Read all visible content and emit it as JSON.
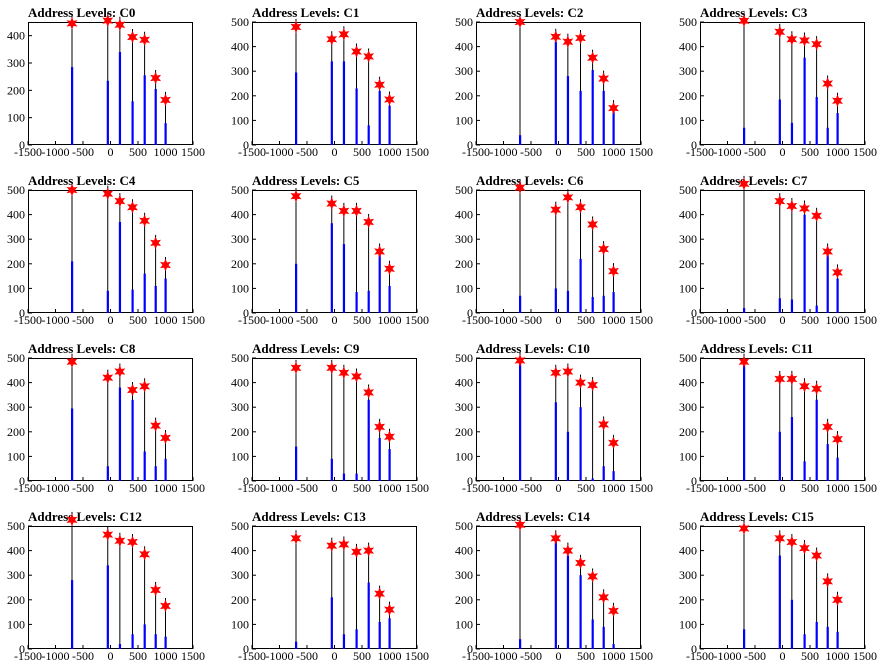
{
  "chart_data": [
    {
      "title": "Address Levels: C0",
      "type": "bar",
      "xlim": [
        -1500,
        1500
      ],
      "ylim": [
        0,
        450
      ],
      "x_ticks": [
        -1500,
        -1000,
        -500,
        0,
        500,
        1000,
        1500
      ],
      "x_tick_labels": [
        "-1500",
        "-1000",
        "-500",
        "0",
        "500",
        "1000",
        "1500"
      ],
      "y_ticks": [
        0,
        100,
        200,
        300,
        400
      ],
      "y_tick_labels": [
        "0",
        "100",
        "200",
        "300",
        "400"
      ],
      "peaks": {
        "x": [
          -700,
          -50,
          170,
          400,
          620,
          820,
          1000
        ],
        "y": [
          445,
          455,
          440,
          395,
          385,
          245,
          165
        ]
      },
      "blue_bars": {
        "x": [
          -700,
          -50,
          170,
          400,
          620,
          820,
          1000
        ],
        "y": [
          285,
          235,
          340,
          160,
          255,
          205,
          80
        ]
      }
    },
    {
      "title": "Address Levels: C1",
      "type": "bar",
      "xlim": [
        -1500,
        1500
      ],
      "ylim": [
        0,
        500
      ],
      "x_ticks": [
        -1500,
        -1000,
        -500,
        0,
        500,
        1000,
        1500
      ],
      "x_tick_labels": [
        "-1500",
        "-1000",
        "-500",
        "0",
        "500",
        "1000",
        "1500"
      ],
      "y_ticks": [
        0,
        100,
        200,
        300,
        400,
        500
      ],
      "y_tick_labels": [
        "0",
        "100",
        "200",
        "300",
        "400",
        "500"
      ],
      "peaks": {
        "x": [
          -700,
          -50,
          170,
          400,
          620,
          820,
          1000
        ],
        "y": [
          480,
          430,
          450,
          380,
          360,
          245,
          185
        ]
      },
      "blue_bars": {
        "x": [
          -700,
          -50,
          170,
          400,
          620,
          820,
          1000
        ],
        "y": [
          295,
          340,
          340,
          230,
          80,
          220,
          160
        ]
      }
    },
    {
      "title": "Address Levels: C2",
      "type": "bar",
      "xlim": [
        -1500,
        1500
      ],
      "ylim": [
        0,
        500
      ],
      "x_ticks": [
        -1500,
        -1000,
        -500,
        0,
        500,
        1000,
        1500
      ],
      "x_tick_labels": [
        "-1500",
        "-1000",
        "-500",
        "0",
        "500",
        "1000",
        "1500"
      ],
      "y_ticks": [
        0,
        100,
        200,
        300,
        400,
        500
      ],
      "y_tick_labels": [
        "0",
        "100",
        "200",
        "300",
        "400",
        "500"
      ],
      "peaks": {
        "x": [
          -700,
          -50,
          170,
          400,
          620,
          820,
          1000
        ],
        "y": [
          500,
          440,
          420,
          435,
          355,
          270,
          150
        ]
      },
      "blue_bars": {
        "x": [
          -700,
          -50,
          170,
          400,
          620,
          820,
          1000
        ],
        "y": [
          40,
          420,
          280,
          220,
          305,
          220,
          135
        ]
      }
    },
    {
      "title": "Address Levels: C3",
      "type": "bar",
      "xlim": [
        -1500,
        1500
      ],
      "ylim": [
        0,
        500
      ],
      "x_ticks": [
        -1500,
        -1000,
        -500,
        0,
        500,
        1000,
        1500
      ],
      "x_tick_labels": [
        "-1500",
        "-1000",
        "-500",
        "0",
        "500",
        "1000",
        "1500"
      ],
      "y_ticks": [
        0,
        100,
        200,
        300,
        400,
        500
      ],
      "y_tick_labels": [
        "0",
        "100",
        "200",
        "300",
        "400",
        "500"
      ],
      "peaks": {
        "x": [
          -700,
          -50,
          170,
          400,
          620,
          820,
          1000
        ],
        "y": [
          505,
          460,
          430,
          425,
          410,
          250,
          180
        ]
      },
      "blue_bars": {
        "x": [
          -700,
          -50,
          170,
          400,
          620,
          820,
          1000
        ],
        "y": [
          70,
          185,
          90,
          355,
          195,
          70,
          130
        ]
      }
    },
    {
      "title": "Address Levels: C4",
      "type": "bar",
      "xlim": [
        -1500,
        1500
      ],
      "ylim": [
        0,
        500
      ],
      "x_ticks": [
        -1500,
        -1000,
        -500,
        0,
        500,
        1000,
        1500
      ],
      "x_tick_labels": [
        "-1500",
        "-1000",
        "-500",
        "0",
        "500",
        "1000",
        "1500"
      ],
      "y_ticks": [
        0,
        100,
        200,
        300,
        400,
        500
      ],
      "y_tick_labels": [
        "0",
        "100",
        "200",
        "300",
        "400",
        "500"
      ],
      "peaks": {
        "x": [
          -700,
          -50,
          170,
          400,
          620,
          820,
          1000
        ],
        "y": [
          500,
          485,
          455,
          430,
          375,
          285,
          195
        ]
      },
      "blue_bars": {
        "x": [
          -700,
          -50,
          170,
          400,
          620,
          820,
          1000
        ],
        "y": [
          210,
          90,
          370,
          95,
          160,
          110,
          140
        ]
      }
    },
    {
      "title": "Address Levels: C5",
      "type": "bar",
      "xlim": [
        -1500,
        1500
      ],
      "ylim": [
        0,
        500
      ],
      "x_ticks": [
        -1500,
        -1000,
        -500,
        0,
        500,
        1000,
        1500
      ],
      "x_tick_labels": [
        "-1500",
        "-1000",
        "-500",
        "0",
        "500",
        "1000",
        "1500"
      ],
      "y_ticks": [
        0,
        100,
        200,
        300,
        400,
        500
      ],
      "y_tick_labels": [
        "0",
        "100",
        "200",
        "300",
        "400",
        "500"
      ],
      "peaks": {
        "x": [
          -700,
          -50,
          170,
          400,
          620,
          820,
          1000
        ],
        "y": [
          475,
          445,
          415,
          415,
          370,
          250,
          180
        ]
      },
      "blue_bars": {
        "x": [
          -700,
          -50,
          170,
          400,
          620,
          820,
          1000
        ],
        "y": [
          200,
          365,
          280,
          85,
          90,
          245,
          110
        ]
      }
    },
    {
      "title": "Address Levels: C6",
      "type": "bar",
      "xlim": [
        -1500,
        1500
      ],
      "ylim": [
        0,
        500
      ],
      "x_ticks": [
        -1500,
        -1000,
        -500,
        0,
        500,
        1000,
        1500
      ],
      "x_tick_labels": [
        "-1500",
        "-1000",
        "-500",
        "0",
        "500",
        "1000",
        "1500"
      ],
      "y_ticks": [
        0,
        100,
        200,
        300,
        400,
        500
      ],
      "y_tick_labels": [
        "0",
        "100",
        "200",
        "300",
        "400",
        "500"
      ],
      "peaks": {
        "x": [
          -700,
          -50,
          170,
          400,
          620,
          820,
          1000
        ],
        "y": [
          510,
          420,
          470,
          430,
          360,
          260,
          170
        ]
      },
      "blue_bars": {
        "x": [
          -700,
          -50,
          170,
          400,
          620,
          820,
          1000
        ],
        "y": [
          70,
          100,
          90,
          220,
          65,
          70,
          85
        ]
      }
    },
    {
      "title": "Address Levels: C7",
      "type": "bar",
      "xlim": [
        -1500,
        1500
      ],
      "ylim": [
        0,
        500
      ],
      "x_ticks": [
        -1500,
        -1000,
        -500,
        0,
        500,
        1000,
        1500
      ],
      "x_tick_labels": [
        "-1500",
        "-1000",
        "-500",
        "0",
        "500",
        "1000",
        "1500"
      ],
      "y_ticks": [
        0,
        100,
        200,
        300,
        400,
        500
      ],
      "y_tick_labels": [
        "0",
        "100",
        "200",
        "300",
        "400",
        "500"
      ],
      "peaks": {
        "x": [
          -700,
          -50,
          170,
          400,
          620,
          820,
          1000
        ],
        "y": [
          525,
          455,
          435,
          425,
          395,
          250,
          165
        ]
      },
      "blue_bars": {
        "x": [
          -700,
          -50,
          170,
          400,
          620,
          820,
          1000
        ],
        "y": [
          20,
          60,
          55,
          400,
          30,
          235,
          140
        ]
      }
    },
    {
      "title": "Address Levels: C8",
      "type": "bar",
      "xlim": [
        -1500,
        1500
      ],
      "ylim": [
        0,
        500
      ],
      "x_ticks": [
        -1500,
        -1000,
        -500,
        0,
        500,
        1000,
        1500
      ],
      "x_tick_labels": [
        "-1500",
        "-1000",
        "-500",
        "0",
        "500",
        "1000",
        "1500"
      ],
      "y_ticks": [
        0,
        100,
        200,
        300,
        400,
        500
      ],
      "y_tick_labels": [
        "0",
        "100",
        "200",
        "300",
        "400",
        "500"
      ],
      "peaks": {
        "x": [
          -700,
          -50,
          170,
          400,
          620,
          820,
          1000
        ],
        "y": [
          485,
          420,
          445,
          370,
          385,
          225,
          175
        ]
      },
      "blue_bars": {
        "x": [
          -700,
          -50,
          170,
          400,
          620,
          820,
          1000
        ],
        "y": [
          295,
          60,
          380,
          330,
          120,
          60,
          90
        ]
      }
    },
    {
      "title": "Address Levels: C9",
      "type": "bar",
      "xlim": [
        -1500,
        1500
      ],
      "ylim": [
        0,
        500
      ],
      "x_ticks": [
        -1500,
        -1000,
        -500,
        0,
        500,
        1000,
        1500
      ],
      "x_tick_labels": [
        "-1500",
        "-1000",
        "-500",
        "0",
        "500",
        "1000",
        "1500"
      ],
      "y_ticks": [
        0,
        100,
        200,
        300,
        400,
        500
      ],
      "y_tick_labels": [
        "0",
        "100",
        "200",
        "300",
        "400",
        "500"
      ],
      "peaks": {
        "x": [
          -700,
          -50,
          170,
          400,
          620,
          820,
          1000
        ],
        "y": [
          460,
          460,
          440,
          425,
          360,
          220,
          180
        ]
      },
      "blue_bars": {
        "x": [
          -700,
          -50,
          170,
          400,
          620,
          820,
          1000
        ],
        "y": [
          140,
          90,
          30,
          30,
          330,
          175,
          130
        ]
      }
    },
    {
      "title": "Address Levels: C10",
      "type": "bar",
      "xlim": [
        -1500,
        1500
      ],
      "ylim": [
        0,
        500
      ],
      "x_ticks": [
        -1500,
        -1000,
        -500,
        0,
        500,
        1000,
        1500
      ],
      "x_tick_labels": [
        "-1500",
        "-1000",
        "-500",
        "0",
        "500",
        "1000",
        "1500"
      ],
      "y_ticks": [
        0,
        100,
        200,
        300,
        400,
        500
      ],
      "y_tick_labels": [
        "0",
        "100",
        "200",
        "300",
        "400",
        "500"
      ],
      "peaks": {
        "x": [
          -700,
          -50,
          170,
          400,
          620,
          820,
          1000
        ],
        "y": [
          490,
          440,
          445,
          400,
          390,
          230,
          155
        ]
      },
      "blue_bars": {
        "x": [
          -700,
          -50,
          170,
          400,
          620,
          820,
          1000
        ],
        "y": [
          480,
          320,
          200,
          300,
          10,
          60,
          40
        ]
      }
    },
    {
      "title": "Address Levels: C11",
      "type": "bar",
      "xlim": [
        -1500,
        1500
      ],
      "ylim": [
        0,
        500
      ],
      "x_ticks": [
        -1500,
        -1000,
        -500,
        0,
        500,
        1000,
        1500
      ],
      "x_tick_labels": [
        "-1500",
        "-1000",
        "-500",
        "0",
        "500",
        "1000",
        "1500"
      ],
      "y_ticks": [
        0,
        100,
        200,
        300,
        400,
        500
      ],
      "y_tick_labels": [
        "0",
        "100",
        "200",
        "300",
        "400",
        "500"
      ],
      "peaks": {
        "x": [
          -700,
          -50,
          170,
          400,
          620,
          820,
          1000
        ],
        "y": [
          485,
          415,
          415,
          385,
          375,
          220,
          170
        ]
      },
      "blue_bars": {
        "x": [
          -700,
          -50,
          170,
          400,
          620,
          820,
          1000
        ],
        "y": [
          470,
          200,
          260,
          80,
          330,
          150,
          95
        ]
      }
    },
    {
      "title": "Address Levels: C12",
      "type": "bar",
      "xlim": [
        -1500,
        1500
      ],
      "ylim": [
        0,
        500
      ],
      "x_ticks": [
        -1500,
        -1000,
        -500,
        0,
        500,
        1000,
        1500
      ],
      "x_tick_labels": [
        "-1500",
        "-1000",
        "-500",
        "0",
        "500",
        "1000",
        "1500"
      ],
      "y_ticks": [
        0,
        100,
        200,
        300,
        400,
        500
      ],
      "y_tick_labels": [
        "0",
        "100",
        "200",
        "300",
        "400",
        "500"
      ],
      "peaks": {
        "x": [
          -700,
          -50,
          170,
          400,
          620,
          820,
          1000
        ],
        "y": [
          525,
          465,
          440,
          435,
          385,
          240,
          175
        ]
      },
      "blue_bars": {
        "x": [
          -700,
          -50,
          170,
          400,
          620,
          820,
          1000
        ],
        "y": [
          280,
          340,
          20,
          60,
          100,
          60,
          50
        ]
      }
    },
    {
      "title": "Address Levels: C13",
      "type": "bar",
      "xlim": [
        -1500,
        1500
      ],
      "ylim": [
        0,
        500
      ],
      "x_ticks": [
        -1500,
        -1000,
        -500,
        0,
        500,
        1000,
        1500
      ],
      "x_tick_labels": [
        "-1500",
        "-1000",
        "-500",
        "0",
        "500",
        "1000",
        "1500"
      ],
      "y_ticks": [
        0,
        100,
        200,
        300,
        400,
        500
      ],
      "y_tick_labels": [
        "0",
        "100",
        "200",
        "300",
        "400",
        "500"
      ],
      "peaks": {
        "x": [
          -700,
          -50,
          170,
          400,
          620,
          820,
          1000
        ],
        "y": [
          450,
          420,
          425,
          395,
          400,
          225,
          160
        ]
      },
      "blue_bars": {
        "x": [
          -700,
          -50,
          170,
          400,
          620,
          820,
          1000
        ],
        "y": [
          30,
          210,
          60,
          80,
          270,
          110,
          125
        ]
      }
    },
    {
      "title": "Address Levels: C14",
      "type": "bar",
      "xlim": [
        -1500,
        1500
      ],
      "ylim": [
        0,
        500
      ],
      "x_ticks": [
        -1500,
        -1000,
        -500,
        0,
        500,
        1000,
        1500
      ],
      "x_tick_labels": [
        "-1500",
        "-1000",
        "-500",
        "0",
        "500",
        "1000",
        "1500"
      ],
      "y_ticks": [
        0,
        100,
        200,
        300,
        400,
        500
      ],
      "y_tick_labels": [
        "0",
        "100",
        "200",
        "300",
        "400",
        "500"
      ],
      "peaks": {
        "x": [
          -700,
          -50,
          170,
          400,
          620,
          820,
          1000
        ],
        "y": [
          505,
          450,
          400,
          350,
          295,
          210,
          155
        ]
      },
      "blue_bars": {
        "x": [
          -700,
          -50,
          170,
          400,
          620,
          820,
          1000
        ],
        "y": [
          40,
          440,
          380,
          300,
          120,
          90,
          20
        ]
      }
    },
    {
      "title": "Address Levels: C15",
      "type": "bar",
      "xlim": [
        -1500,
        1500
      ],
      "ylim": [
        0,
        500
      ],
      "x_ticks": [
        -1500,
        -1000,
        -500,
        0,
        500,
        1000,
        1500
      ],
      "x_tick_labels": [
        "-1500",
        "-1000",
        "-500",
        "0",
        "500",
        "1000",
        "1500"
      ],
      "y_ticks": [
        0,
        100,
        200,
        300,
        400,
        500
      ],
      "y_tick_labels": [
        "0",
        "100",
        "200",
        "300",
        "400",
        "500"
      ],
      "peaks": {
        "x": [
          -700,
          -50,
          170,
          400,
          620,
          820,
          1000
        ],
        "y": [
          490,
          450,
          435,
          410,
          380,
          275,
          200
        ]
      },
      "blue_bars": {
        "x": [
          -700,
          -50,
          170,
          400,
          620,
          820,
          1000
        ],
        "y": [
          80,
          380,
          200,
          60,
          110,
          90,
          70
        ]
      }
    }
  ],
  "colors": {
    "peak_line": "#000000",
    "blue_bar": "#0000ff",
    "marker": "#ff0000",
    "axis": "#000000"
  }
}
